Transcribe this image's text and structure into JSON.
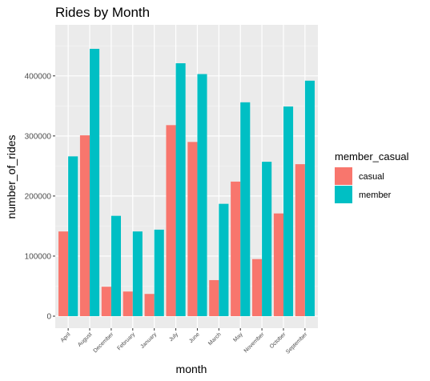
{
  "chart_data": {
    "type": "bar",
    "title": "Rides by Month",
    "xlabel": "month",
    "ylabel": "number_of_rides",
    "categories": [
      "April",
      "August",
      "December",
      "February",
      "January",
      "July",
      "June",
      "March",
      "May",
      "November",
      "October",
      "September"
    ],
    "series": [
      {
        "name": "casual",
        "color": "#F8766D",
        "values": [
          141000,
          301000,
          49000,
          41000,
          37000,
          318000,
          290000,
          60000,
          224000,
          95000,
          171000,
          253000
        ]
      },
      {
        "name": "member",
        "color": "#00BFC4",
        "values": [
          266000,
          445000,
          167000,
          141000,
          144000,
          421000,
          403000,
          187000,
          356000,
          257000,
          349000,
          392000
        ]
      }
    ],
    "ylim": [
      -20000,
      485000
    ],
    "yticks": [
      0,
      100000,
      200000,
      300000,
      400000
    ],
    "ytick_labels": [
      "0",
      "100000",
      "200000",
      "300000",
      "400000"
    ],
    "legend": {
      "title": "member_casual",
      "position": "right"
    },
    "grid": true,
    "panel_color": "#EBEBEB"
  }
}
